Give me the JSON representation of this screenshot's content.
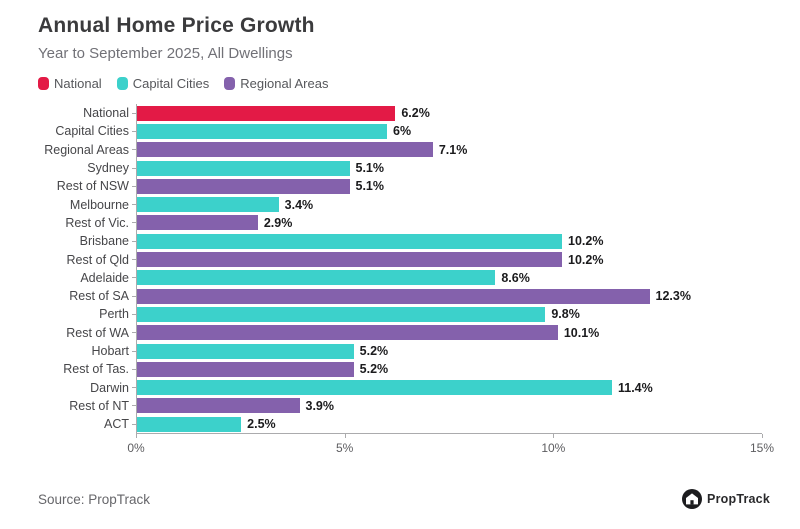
{
  "header": {
    "title": "Annual Home Price Growth",
    "subtitle": "Year to September 2025, All Dwellings"
  },
  "legend": [
    {
      "label": "National",
      "color": "#e31a46"
    },
    {
      "label": "Capital Cities",
      "color": "#3cd1cb"
    },
    {
      "label": "Regional Areas",
      "color": "#8461ac"
    }
  ],
  "chart_data": {
    "type": "bar",
    "orientation": "horizontal",
    "title": "Annual Home Price Growth",
    "subtitle": "Year to September 2025, All Dwellings",
    "xlabel": "",
    "ylabel": "",
    "xlim": [
      0,
      15
    ],
    "x_ticks": [
      "0%",
      "5%",
      "10%",
      "15%"
    ],
    "x_tick_values": [
      0,
      5,
      10,
      15
    ],
    "grid": false,
    "legend_position": "top-left",
    "categories": [
      "National",
      "Capital Cities",
      "Regional Areas",
      "Sydney",
      "Rest of NSW",
      "Melbourne",
      "Rest of Vic.",
      "Brisbane",
      "Rest of Qld",
      "Adelaide",
      "Rest of SA",
      "Perth",
      "Rest of WA",
      "Hobart",
      "Rest of Tas.",
      "Darwin",
      "Rest of NT",
      "ACT"
    ],
    "values": [
      6.2,
      6,
      7.1,
      5.1,
      5.1,
      3.4,
      2.9,
      10.2,
      10.2,
      8.6,
      12.3,
      9.8,
      10.1,
      5.2,
      5.2,
      11.4,
      3.9,
      2.5
    ],
    "value_labels": [
      "6.2%",
      "6%",
      "7.1%",
      "5.1%",
      "5.1%",
      "3.4%",
      "2.9%",
      "10.2%",
      "10.2%",
      "8.6%",
      "12.3%",
      "9.8%",
      "10.1%",
      "5.2%",
      "5.2%",
      "11.4%",
      "3.9%",
      "2.5%"
    ],
    "bar_groups": [
      "national",
      "capital",
      "regional",
      "capital",
      "regional",
      "capital",
      "regional",
      "capital",
      "regional",
      "capital",
      "regional",
      "capital",
      "regional",
      "capital",
      "regional",
      "capital",
      "regional",
      "capital"
    ],
    "group_colors": {
      "national": "#e31a46",
      "capital": "#3cd1cb",
      "regional": "#8461ac"
    }
  },
  "footer": {
    "source": "Source: PropTrack",
    "logo_text": "PropTrack",
    "logo_icon": "house-circle-icon"
  }
}
